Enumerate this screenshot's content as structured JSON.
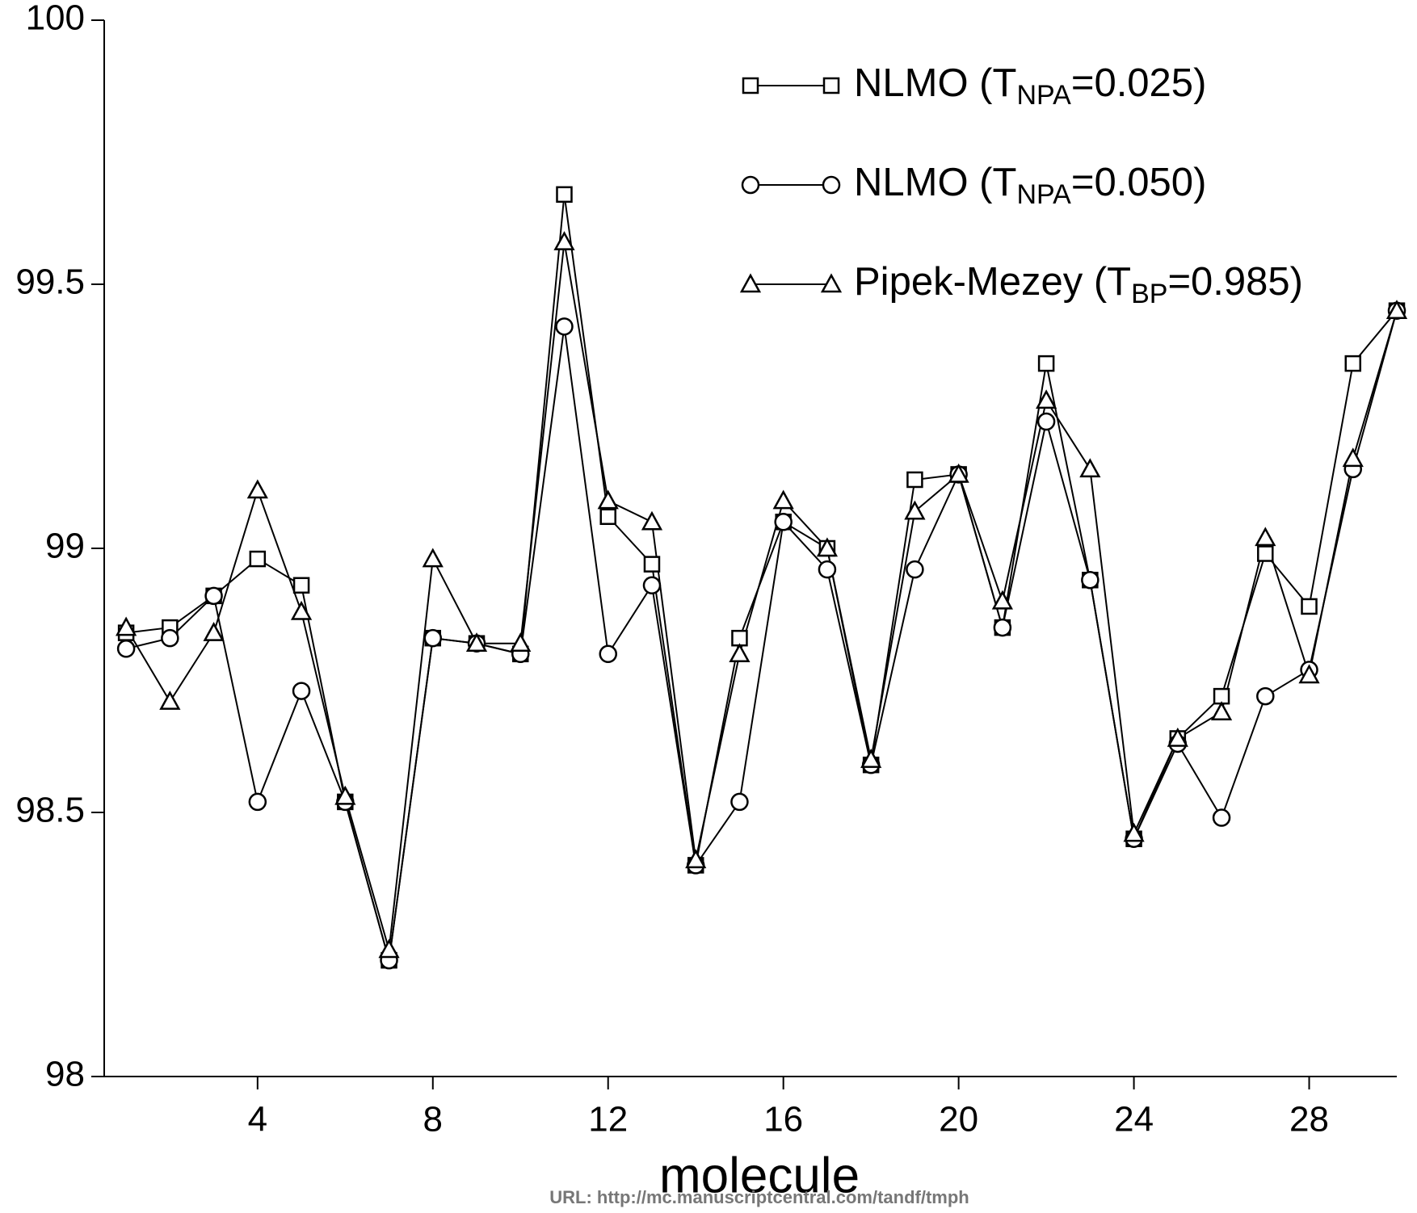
{
  "chart_data": {
    "type": "line",
    "x_label": "molecule",
    "footer": "URL: http://mc.manuscriptcentral.com/tandf/tmph",
    "x": [
      1,
      2,
      3,
      4,
      5,
      6,
      7,
      8,
      9,
      10,
      11,
      12,
      13,
      14,
      15,
      16,
      17,
      18,
      19,
      20,
      21,
      22,
      23,
      24,
      25,
      26,
      27,
      28,
      29,
      30
    ],
    "xlim": [
      0.5,
      30
    ],
    "xticks": [
      4,
      8,
      12,
      16,
      20,
      24,
      28
    ],
    "ylim": [
      98,
      100
    ],
    "yticks": [
      98,
      98.5,
      99,
      99.5,
      100
    ],
    "legend": "upper right",
    "series": [
      {
        "name": [
          "NLMO (T",
          "NPA",
          "=0.025)"
        ],
        "color": "#000000",
        "marker": "square",
        "values": [
          98.84,
          98.85,
          98.91,
          98.98,
          98.93,
          98.52,
          98.22,
          98.83,
          98.82,
          98.8,
          99.67,
          99.06,
          98.97,
          98.4,
          98.83,
          99.05,
          99.0,
          98.59,
          99.13,
          99.14,
          98.85,
          99.35,
          98.94,
          98.45,
          98.64,
          98.72,
          98.99,
          98.89,
          99.35,
          99.45
        ]
      },
      {
        "name": [
          "NLMO (T",
          "NPA",
          "=0.050)"
        ],
        "color": "#000000",
        "marker": "circle",
        "values": [
          98.81,
          98.83,
          98.91,
          98.52,
          98.73,
          98.52,
          98.22,
          98.83,
          98.82,
          98.8,
          99.42,
          98.8,
          98.93,
          98.4,
          98.52,
          99.05,
          98.96,
          98.59,
          98.96,
          99.14,
          98.85,
          99.24,
          98.94,
          98.45,
          98.63,
          98.49,
          98.72,
          98.77,
          99.15,
          99.45
        ]
      },
      {
        "name": [
          "Pipek-Mezey (T",
          "BP",
          "=0.985)"
        ],
        "color": "#000000",
        "marker": "triangle",
        "values": [
          98.85,
          98.71,
          98.84,
          99.11,
          98.88,
          98.53,
          98.24,
          98.98,
          98.82,
          98.82,
          99.58,
          99.09,
          99.05,
          98.41,
          98.8,
          99.09,
          99.0,
          98.6,
          99.07,
          99.14,
          98.9,
          99.28,
          99.15,
          98.46,
          98.64,
          98.69,
          99.02,
          98.76,
          99.17,
          99.45
        ]
      }
    ]
  }
}
